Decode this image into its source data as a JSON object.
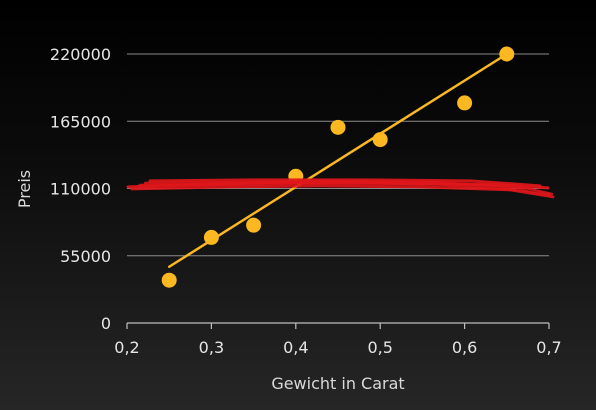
{
  "chart_data": {
    "type": "scatter",
    "title": "",
    "xlabel": "Gewicht in Carat",
    "ylabel": "Preis",
    "xlim": [
      0.2,
      0.7
    ],
    "ylim": [
      0,
      220000
    ],
    "x_ticks": [
      "0,2",
      "0,3",
      "0,4",
      "0,5",
      "0,6",
      "0,7"
    ],
    "y_ticks": [
      "0",
      "55000",
      "110000",
      "165000",
      "220000"
    ],
    "grid": "horizontal",
    "series": [
      {
        "points": [
          {
            "x": 0.25,
            "y": 35000
          },
          {
            "x": 0.3,
            "y": 70000
          },
          {
            "x": 0.35,
            "y": 80000
          },
          {
            "x": 0.4,
            "y": 120000
          },
          {
            "x": 0.45,
            "y": 160000
          },
          {
            "x": 0.5,
            "y": 150000
          },
          {
            "x": 0.6,
            "y": 180000
          },
          {
            "x": 0.65,
            "y": 220000
          }
        ]
      }
    ],
    "trendline": {
      "x": [
        0.25,
        0.65
      ],
      "y": [
        46000,
        220000
      ]
    },
    "annotation": {
      "type": "hand-drawn red strike line",
      "y": 113000
    },
    "colors": {
      "points": "#fbb820",
      "trendline": "#fbb820",
      "annotation": "#e0161b",
      "grid": "#8a8a8a",
      "axis": "#bfbfbf",
      "text": "#e6e6e6"
    }
  }
}
